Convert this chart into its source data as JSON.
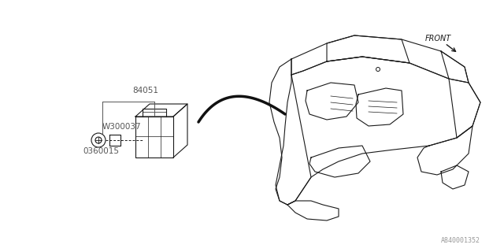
{
  "bg_color": "#ffffff",
  "line_color": "#1a1a1a",
  "label_color": "#555555",
  "diagram_id": "A840001352",
  "part_label_84051": "84051",
  "part_label_W300037": "W300037",
  "part_label_0360015": "0360015",
  "front_label": "FRONT",
  "figsize": [
    6.4,
    3.2
  ],
  "dpi": 100
}
